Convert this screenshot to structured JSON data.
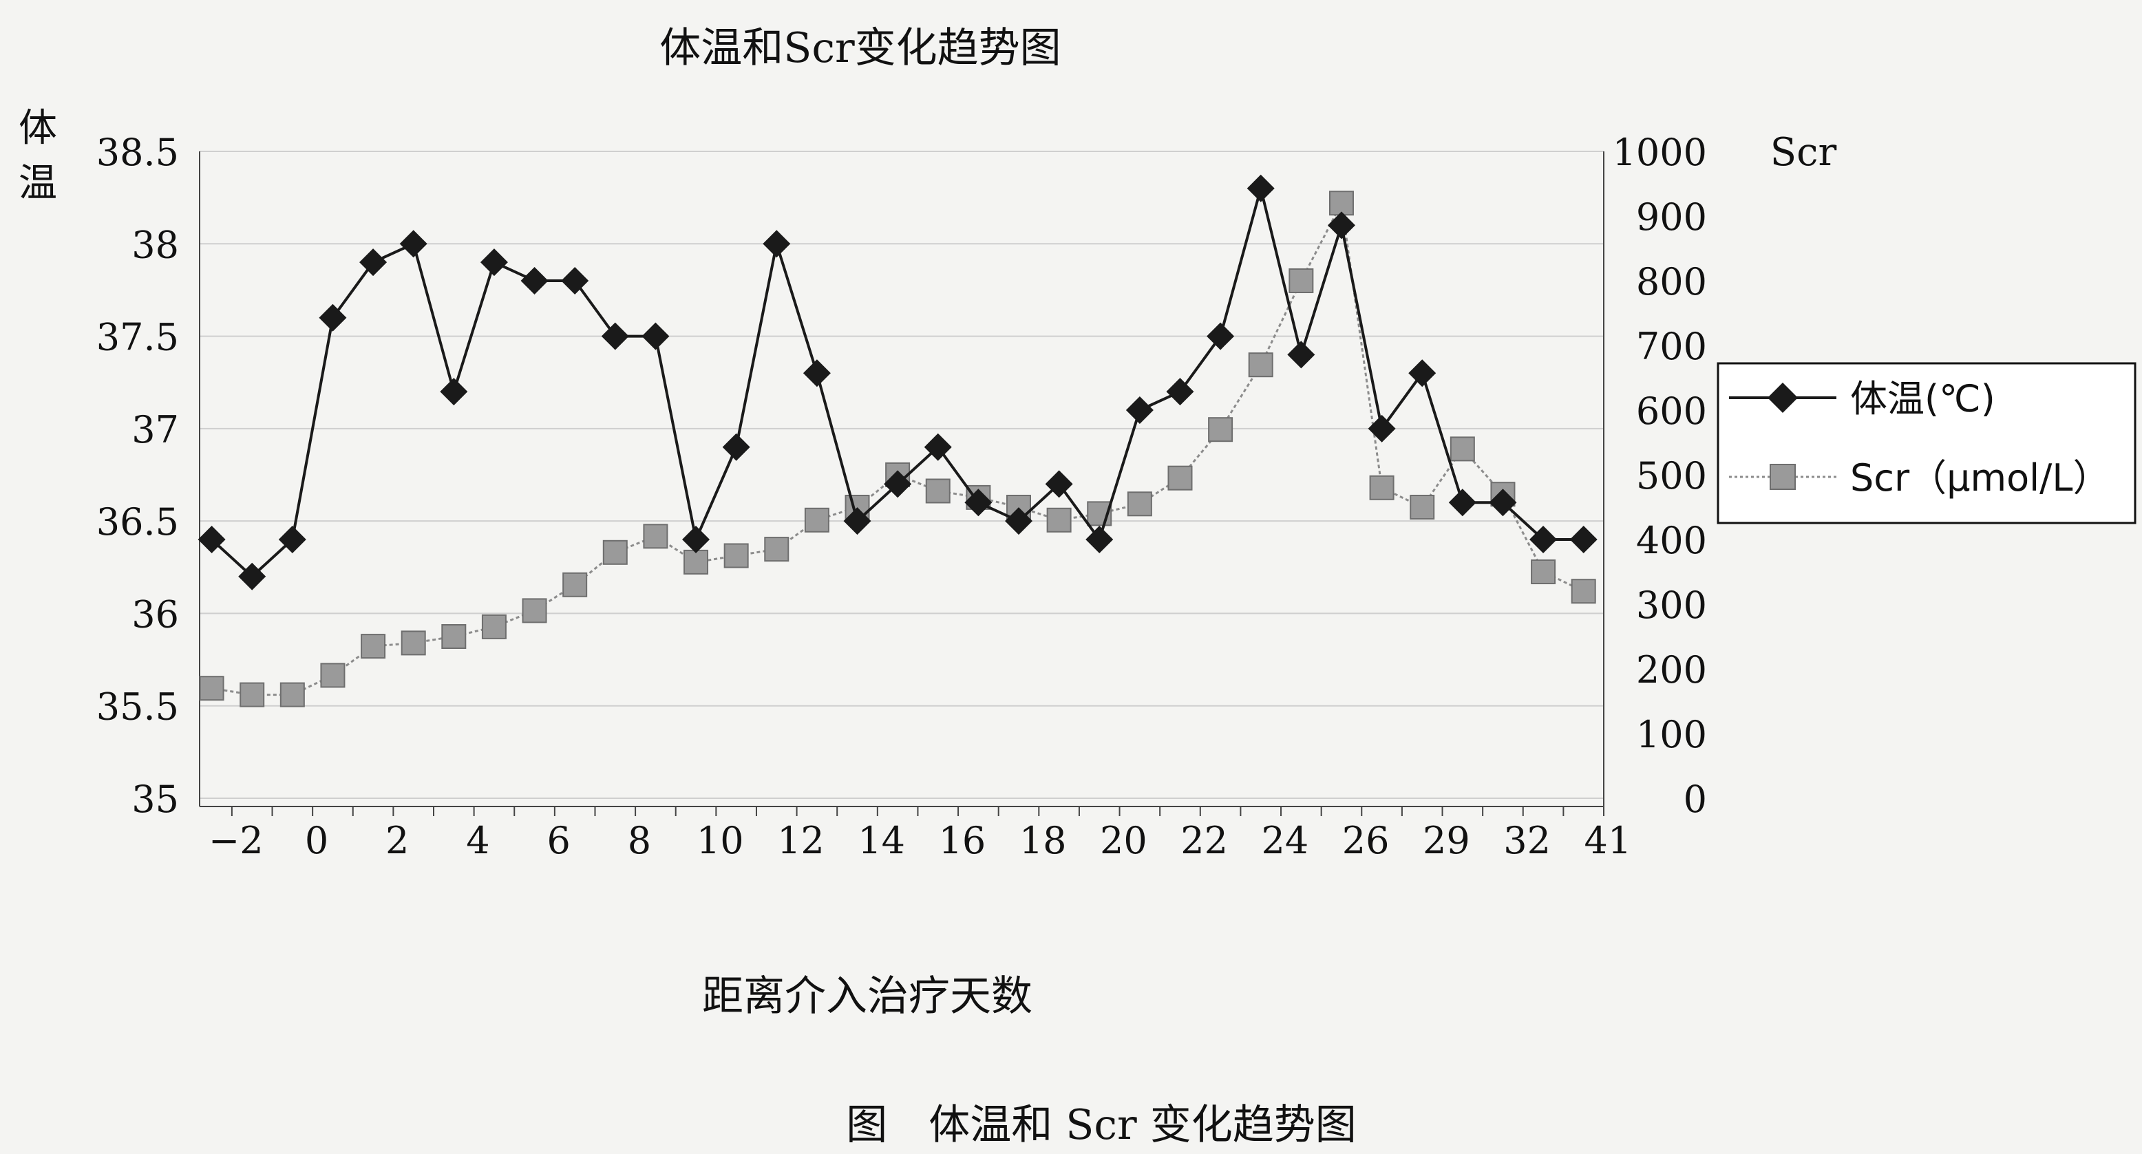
{
  "chart_data": {
    "type": "line",
    "title": "体温和Scr变化趋势图",
    "caption": "图　体温和 Scr 变化趋势图",
    "xlabel": "距离介入治疗天数",
    "ylabel_left": "体温",
    "ylabel_right": "Scr",
    "ylim_left": [
      35,
      38.5
    ],
    "ylim_right": [
      0,
      1000
    ],
    "yticks_left": [
      "35",
      "35.5",
      "36",
      "36.5",
      "37",
      "37.5",
      "38",
      "38.5"
    ],
    "yticks_right": [
      "0",
      "100",
      "200",
      "300",
      "400",
      "500",
      "600",
      "700",
      "800",
      "900",
      "1000"
    ],
    "x_tick_labels": [
      "−2",
      "0",
      "2",
      "4",
      "6",
      "8",
      "10",
      "12",
      "14",
      "16",
      "18",
      "20",
      "22",
      "24",
      "26",
      "29",
      "32",
      "41"
    ],
    "grid": true,
    "legend_position": "right",
    "series": [
      {
        "name": "体温(℃)",
        "axis": "left",
        "color": "#1a1a1a",
        "marker": "diamond",
        "values": [
          36.4,
          36.2,
          36.4,
          37.6,
          37.9,
          38.0,
          37.2,
          37.9,
          37.8,
          37.8,
          37.5,
          37.5,
          36.4,
          36.9,
          38.0,
          37.3,
          36.5,
          36.7,
          36.9,
          36.6,
          36.5,
          36.7,
          36.4,
          37.1,
          37.2,
          37.5,
          38.3,
          37.4,
          38.1,
          37.0,
          37.3,
          36.6,
          36.6,
          36.4,
          36.4
        ]
      },
      {
        "name": "Scr（μmol/L）",
        "axis": "right",
        "color": "#8c8c8c",
        "marker": "square",
        "values": [
          170,
          160,
          160,
          190,
          235,
          240,
          250,
          265,
          290,
          330,
          380,
          405,
          365,
          375,
          385,
          430,
          450,
          500,
          475,
          465,
          450,
          430,
          440,
          455,
          495,
          570,
          670,
          800,
          920,
          480,
          450,
          540,
          470,
          350,
          320
        ]
      }
    ]
  },
  "colors": {
    "background": "#f4f4f2",
    "grid": "#cfcfcf",
    "temperature_series": "#1a1a1a",
    "scr_series": "#8c8c8c"
  }
}
